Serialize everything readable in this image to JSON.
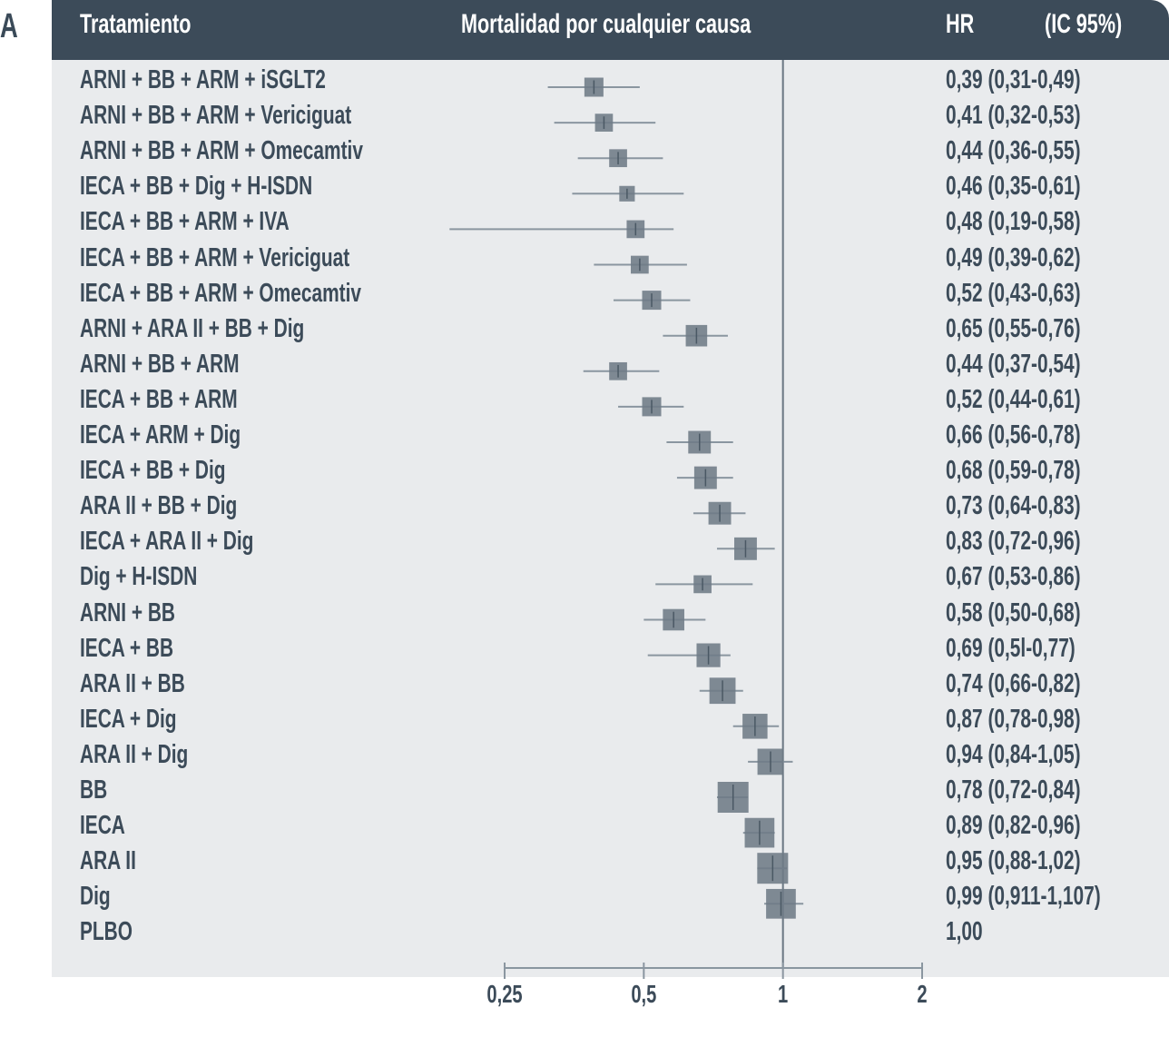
{
  "panel_letter": "A",
  "header": {
    "col_treatment": "Tratamiento",
    "col_outcome": "Mortalidad por cualquier causa",
    "col_hr": "HR",
    "col_ci": "(IC 95%)"
  },
  "colors": {
    "header_bg": "#3c4b59",
    "plot_bg": "#e9ebed",
    "marker": "#6e7b86",
    "ci_line": "#8a96a0",
    "text": "#3c4b59"
  },
  "chart_data": {
    "type": "forest",
    "xlabel": "",
    "x_scale": "log",
    "xlim": [
      0.25,
      2
    ],
    "x_ticks": [
      0.25,
      0.5,
      1,
      2
    ],
    "x_tick_labels": [
      "0,25",
      "0,5",
      "1",
      "2"
    ],
    "reference_line": 1,
    "rows": [
      {
        "label": "ARNI + BB + ARM + iSGLT2",
        "hr_text": "0,39 (0,31-0,49)",
        "hr": 0.39,
        "lo": 0.31,
        "hi": 0.49,
        "weight": 0.5
      },
      {
        "label": "ARNI + BB + ARM + Vericiguat",
        "hr_text": "0,41 (0,32-0,53)",
        "hr": 0.41,
        "lo": 0.32,
        "hi": 0.53,
        "weight": 0.45
      },
      {
        "label": "ARNI + BB + ARM + Omecamtiv",
        "hr_text": "0,44 (0,36-0,55)",
        "hr": 0.44,
        "lo": 0.36,
        "hi": 0.55,
        "weight": 0.45
      },
      {
        "label": "IECA + BB + Dig + H-ISDN",
        "hr_text": "0,46 (0,35-0,61)",
        "hr": 0.46,
        "lo": 0.35,
        "hi": 0.61,
        "weight": 0.35
      },
      {
        "label": "IECA + BB + ARM + IVA",
        "hr_text": "0,48 (0,19-0,58)",
        "hr": 0.48,
        "lo": 0.19,
        "hi": 0.58,
        "weight": 0.45
      },
      {
        "label": "IECA + BB + ARM + Vericiguat",
        "hr_text": "0,49 (0,39-0,62)",
        "hr": 0.49,
        "lo": 0.39,
        "hi": 0.62,
        "weight": 0.45
      },
      {
        "label": "IECA + BB + ARM + Omecamtiv",
        "hr_text": "0,52 (0,43-0,63)",
        "hr": 0.52,
        "lo": 0.43,
        "hi": 0.63,
        "weight": 0.5
      },
      {
        "label": "ARNI + ARA II + BB + Dig",
        "hr_text": "0,65 (0,55-0,76)",
        "hr": 0.65,
        "lo": 0.55,
        "hi": 0.76,
        "weight": 0.6
      },
      {
        "label": "ARNI + BB + ARM",
        "hr_text": "0,44 (0,37-0,54)",
        "hr": 0.44,
        "lo": 0.37,
        "hi": 0.54,
        "weight": 0.45
      },
      {
        "label": "IECA + BB + ARM",
        "hr_text": "0,52 (0,44-0,61)",
        "hr": 0.52,
        "lo": 0.44,
        "hi": 0.61,
        "weight": 0.5
      },
      {
        "label": "IECA + ARM + Dig",
        "hr_text": "0,66 (0,56-0,78)",
        "hr": 0.66,
        "lo": 0.56,
        "hi": 0.78,
        "weight": 0.65
      },
      {
        "label": "IECA + BB + Dig",
        "hr_text": "0,68 (0,59-0,78)",
        "hr": 0.68,
        "lo": 0.59,
        "hi": 0.78,
        "weight": 0.65
      },
      {
        "label": "ARA II + BB + Dig",
        "hr_text": "0,73 (0,64-0,83)",
        "hr": 0.73,
        "lo": 0.64,
        "hi": 0.83,
        "weight": 0.65
      },
      {
        "label": "IECA + ARA II + Dig",
        "hr_text": "0,83 (0,72-0,96)",
        "hr": 0.83,
        "lo": 0.72,
        "hi": 0.96,
        "weight": 0.65
      },
      {
        "label": "Dig + H-ISDN",
        "hr_text": "0,67 (0,53-0,86)",
        "hr": 0.67,
        "lo": 0.53,
        "hi": 0.86,
        "weight": 0.45
      },
      {
        "label": "ARNI + BB",
        "hr_text": "0,58 (0,50-0,68)",
        "hr": 0.58,
        "lo": 0.5,
        "hi": 0.68,
        "weight": 0.6
      },
      {
        "label": "IECA + BB",
        "hr_text": "0,69 (0,5l-0,77)",
        "hr": 0.69,
        "lo": 0.51,
        "hi": 0.77,
        "weight": 0.7
      },
      {
        "label": "ARA II + BB",
        "hr_text": "0,74 (0,66-0,82)",
        "hr": 0.74,
        "lo": 0.66,
        "hi": 0.82,
        "weight": 0.8
      },
      {
        "label": "IECA + Dig",
        "hr_text": "0,87 (0,78-0,98)",
        "hr": 0.87,
        "lo": 0.78,
        "hi": 0.98,
        "weight": 0.75
      },
      {
        "label": "ARA II + Dig",
        "hr_text": "0,94 (0,84-1,05)",
        "hr": 0.94,
        "lo": 0.84,
        "hi": 1.05,
        "weight": 0.8
      },
      {
        "label": "BB",
        "hr_text": "0,78 (0,72-0,84)",
        "hr": 0.78,
        "lo": 0.72,
        "hi": 0.84,
        "weight": 1.0
      },
      {
        "label": "IECA",
        "hr_text": "0,89 (0,82-0,96)",
        "hr": 0.89,
        "lo": 0.82,
        "hi": 0.96,
        "weight": 0.95
      },
      {
        "label": "ARA II",
        "hr_text": "0,95 (0,88-1,02)",
        "hr": 0.95,
        "lo": 0.88,
        "hi": 1.02,
        "weight": 1.0
      },
      {
        "label": "Dig",
        "hr_text": "0,99 (0,911-1,107)",
        "hr": 0.99,
        "lo": 0.911,
        "hi": 1.107,
        "weight": 0.95
      },
      {
        "label": "PLBO",
        "hr_text": "1,00",
        "hr": 1.0,
        "lo": null,
        "hi": null,
        "weight": 0
      }
    ]
  }
}
